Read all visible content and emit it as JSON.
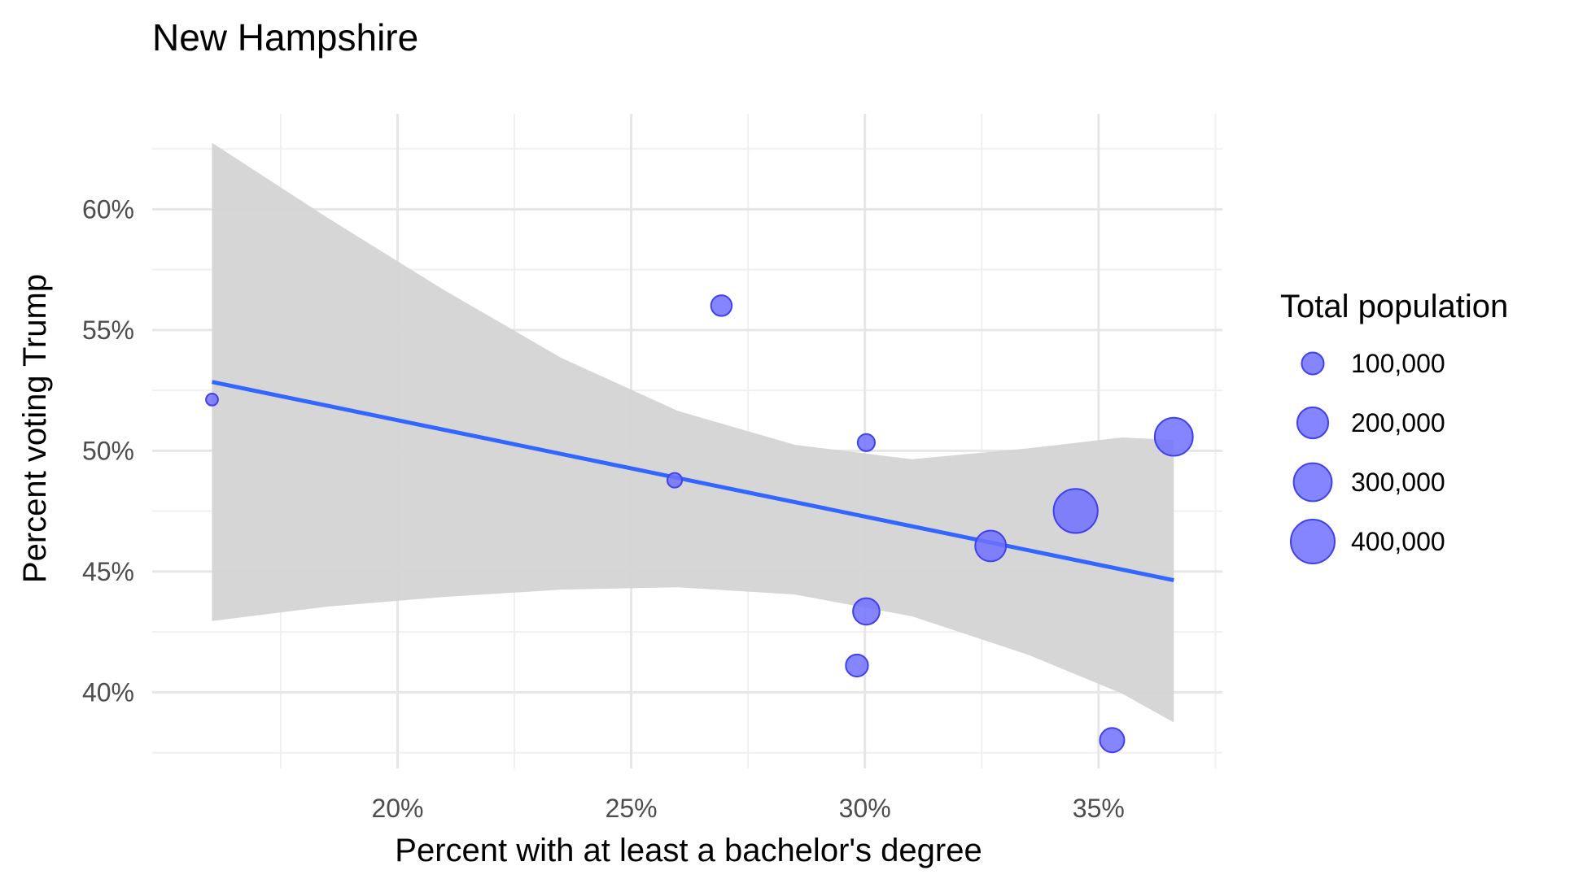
{
  "chart_data": {
    "type": "scatter",
    "title": "New Hampshire",
    "xlabel": "Percent with at least a bachelor's degree",
    "ylabel": "Percent voting Trump",
    "xlim": [
      0.1475,
      0.3765
    ],
    "ylim": [
      0.3685,
      0.6395
    ],
    "x_ticks": [
      {
        "value": 0.2,
        "label": "20%"
      },
      {
        "value": 0.25,
        "label": "25%"
      },
      {
        "value": 0.3,
        "label": "30%"
      },
      {
        "value": 0.35,
        "label": "35%"
      }
    ],
    "y_ticks": [
      {
        "value": 0.4,
        "label": "40%"
      },
      {
        "value": 0.45,
        "label": "45%"
      },
      {
        "value": 0.5,
        "label": "50%"
      },
      {
        "value": 0.55,
        "label": "55%"
      },
      {
        "value": 0.6,
        "label": "60%"
      }
    ],
    "grid": true,
    "points": [
      {
        "x": 0.1603,
        "y": 0.5212,
        "population": 30000
      },
      {
        "x": 0.2593,
        "y": 0.4878,
        "population": 45000
      },
      {
        "x": 0.2693,
        "y": 0.5601,
        "population": 89000
      },
      {
        "x": 0.3003,
        "y": 0.5034,
        "population": 61000
      },
      {
        "x": 0.3003,
        "y": 0.4335,
        "population": 146000
      },
      {
        "x": 0.2983,
        "y": 0.4111,
        "population": 102000
      },
      {
        "x": 0.3269,
        "y": 0.4606,
        "population": 196000
      },
      {
        "x": 0.3451,
        "y": 0.4751,
        "population": 403000
      },
      {
        "x": 0.3529,
        "y": 0.3802,
        "population": 123000
      },
      {
        "x": 0.3661,
        "y": 0.5058,
        "population": 300000
      }
    ],
    "trend_line": {
      "x": [
        0.1603,
        0.3661
      ],
      "y": [
        0.5285,
        0.4464
      ]
    },
    "confidence_band": {
      "x": [
        0.1603,
        0.185,
        0.21,
        0.235,
        0.26,
        0.285,
        0.31,
        0.335,
        0.355,
        0.3661
      ],
      "lower": [
        0.4295,
        0.4355,
        0.4395,
        0.4425,
        0.4435,
        0.4405,
        0.4315,
        0.4155,
        0.3995,
        0.3875
      ],
      "upper": [
        0.6275,
        0.5965,
        0.5665,
        0.5385,
        0.5165,
        0.5025,
        0.4965,
        0.501,
        0.5055,
        0.5045
      ]
    },
    "legend": {
      "title": "Total population",
      "position": "right",
      "entries": [
        {
          "label": "100,000",
          "value": 100000
        },
        {
          "label": "200,000",
          "value": 200000
        },
        {
          "label": "300,000",
          "value": 300000
        },
        {
          "label": "400,000",
          "value": 400000
        }
      ]
    },
    "colors": {
      "point_fill": "#7070ff",
      "point_stroke": "#4040ee",
      "line": "#3366ff",
      "band": "#d4d4d4",
      "grid_major": "#e6e6e6",
      "grid_minor": "#f0f0f0"
    }
  }
}
